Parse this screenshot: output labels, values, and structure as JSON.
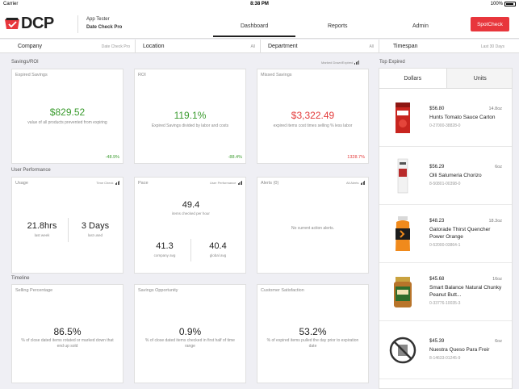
{
  "statusbar": {
    "carrier": "Carrier",
    "time": "8:38 PM",
    "battery": "100%"
  },
  "header": {
    "logo": "DCP",
    "user": "App Tester",
    "product": "Date Check Pro",
    "tabs": [
      "Dashboard",
      "Reports",
      "Admin"
    ],
    "spotcheck": "SpotCheck"
  },
  "filters": {
    "company": {
      "label": "Company",
      "value": "Date Check Pro"
    },
    "location": {
      "label": "Location",
      "value": "All"
    },
    "department": {
      "label": "Department",
      "value": "All"
    },
    "timespan": {
      "label": "Timespan",
      "value": "Last 30 Days"
    }
  },
  "savings": {
    "title": "Savings/ROI",
    "sub": "Marked Down/Expired",
    "expired": {
      "title": "Expired Savings",
      "value": "$829.52",
      "desc": "value of all products prevented from expiring",
      "pct": "-48.9%"
    },
    "roi": {
      "title": "ROI",
      "value": "119.1%",
      "desc": "Expired Savings divided by labor and costs",
      "pct": "-88.4%"
    },
    "missed": {
      "title": "Missed Savings",
      "value": "$3,322.49",
      "desc": "expired items cost times selling % less labor",
      "pct": "1328.7%"
    }
  },
  "performance": {
    "title": "User Performance",
    "usage": {
      "title": "Usage",
      "sub": "Time Check",
      "hrs": "21.8hrs",
      "hrs_label": "last week",
      "days": "3 Days",
      "days_label": "last used"
    },
    "pace": {
      "title": "Pace",
      "sub": "User Performance",
      "value": "49.4",
      "label": "items checked per hour",
      "company": "41.3",
      "company_label": "company avg",
      "global": "40.4",
      "global_label": "global avg"
    },
    "alerts": {
      "title": "Alerts (0)",
      "sub": "All Alerts",
      "empty": "No current action alerts."
    }
  },
  "timeline": {
    "title": "Timeline",
    "selling": {
      "title": "Selling Percentage",
      "value": "86.5%",
      "desc": "% of close dated items rotated or marked down that end up sold"
    },
    "opportunity": {
      "title": "Savings Opportunity",
      "value": "0.9%",
      "desc": "% of close dated items checked in first half of time range"
    },
    "satisfaction": {
      "title": "Customer Satisfaction",
      "value": "53.2%",
      "desc": "% of expired items pulled the day prior to expiration date"
    }
  },
  "top_expired": {
    "title": "Top Expired",
    "tabs": [
      "Dollars",
      "Units"
    ],
    "items": [
      {
        "price": "$56.80",
        "size": "14.8oz",
        "name": "Hunts Tomato Sauce Carton",
        "sku": "0-27000-38828-0",
        "icon": "tomato-carton-image"
      },
      {
        "price": "$56.29",
        "size": "6oz",
        "name": "Olli Salumeria Chorizo",
        "sku": "8-50801-00398-0",
        "icon": "chorizo-image"
      },
      {
        "price": "$48.23",
        "size": "18.3oz",
        "name": "Gatorade Thirst Quencher Power Orange",
        "sku": "0-52000-03864-1",
        "icon": "gatorade-bottle-image"
      },
      {
        "price": "$45.68",
        "size": "16oz",
        "name": "Smart Balance Natural Chunky Peanut Butt...",
        "sku": "0-33776-10035-3",
        "icon": "peanut-butter-jar-image"
      },
      {
        "price": "$45.39",
        "size": "6oz",
        "name": "Nuestra Queso Para Freir",
        "sku": "8-14633-01245-9",
        "icon": "no-image-icon"
      }
    ]
  }
}
